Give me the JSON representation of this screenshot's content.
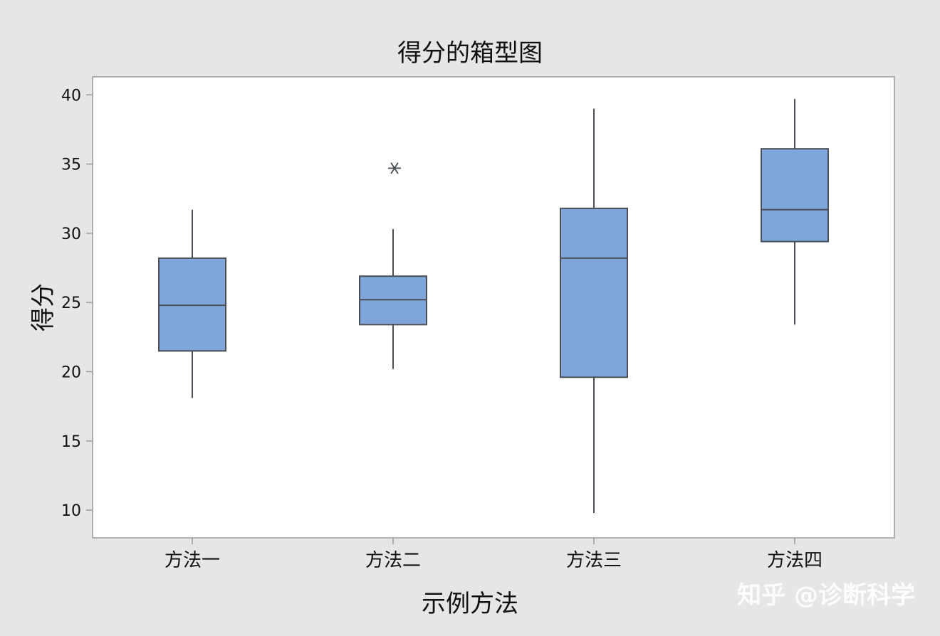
{
  "chart_data": {
    "type": "box",
    "title": "得分的箱型图",
    "xlabel": "示例方法",
    "ylabel": "得分",
    "ylim": [
      8,
      41.3
    ],
    "yticks": [
      10,
      15,
      20,
      25,
      30,
      35,
      40
    ],
    "grid": false,
    "categories": [
      "方法一",
      "方法二",
      "方法三",
      "方法四"
    ],
    "boxes": [
      {
        "category": "方法一",
        "whisker_low": 18.1,
        "q1": 21.5,
        "median": 24.8,
        "q3": 28.2,
        "whisker_high": 31.7,
        "outliers": []
      },
      {
        "category": "方法二",
        "whisker_low": 20.2,
        "q1": 23.4,
        "median": 25.2,
        "q3": 26.9,
        "whisker_high": 30.3,
        "outliers": [
          34.7
        ]
      },
      {
        "category": "方法三",
        "whisker_low": 9.8,
        "q1": 19.6,
        "median": 28.2,
        "q3": 31.8,
        "whisker_high": 39.0,
        "outliers": []
      },
      {
        "category": "方法四",
        "whisker_low": 23.4,
        "q1": 29.4,
        "median": 31.7,
        "q3": 36.1,
        "whisker_high": 39.7,
        "outliers": []
      }
    ],
    "colors": {
      "box_fill": "#7ea6da",
      "box_stroke": "#4a4f57",
      "axis": "#9a9a9a",
      "frame_bg": "#e6e6e6",
      "plot_bg": "#ffffff"
    }
  },
  "watermark": "知乎 @诊断科学"
}
